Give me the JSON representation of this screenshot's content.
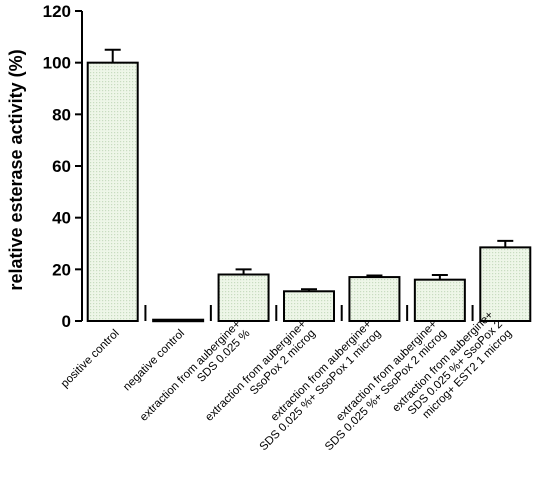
{
  "chart_data": {
    "type": "bar",
    "title": "",
    "xlabel": "",
    "ylabel": "relative esterase activity (%)",
    "ylim": [
      0,
      120
    ],
    "yticks": [
      0,
      20,
      40,
      60,
      80,
      100,
      120
    ],
    "grid": false,
    "categories": [
      [
        "positive control"
      ],
      [
        "negative control"
      ],
      [
        "extraction from aubergine+",
        "SDS 0.025 %"
      ],
      [
        "extraction from aubergine+",
        "SsoPox 2 microg"
      ],
      [
        "extraction from aubergine+",
        "SDS 0.025 %+ SsoPox 1 microg"
      ],
      [
        "extraction from aubergine+",
        "SDS 0.025 %+ SsoPox 2 microg"
      ],
      [
        "extraction from aubergine+",
        "SDS  0.025 %+ SsoPox 2",
        "microg+ EST2 1 microg"
      ]
    ],
    "values": [
      100,
      0.5,
      18,
      11.5,
      17,
      16,
      28.5
    ],
    "errors": [
      5,
      0.2,
      2,
      0.8,
      0.6,
      1.8,
      2.5
    ],
    "bar_fill": "#eef6e8",
    "bar_pattern_color": "#c8dcc0",
    "bar_stroke": "#000000"
  }
}
